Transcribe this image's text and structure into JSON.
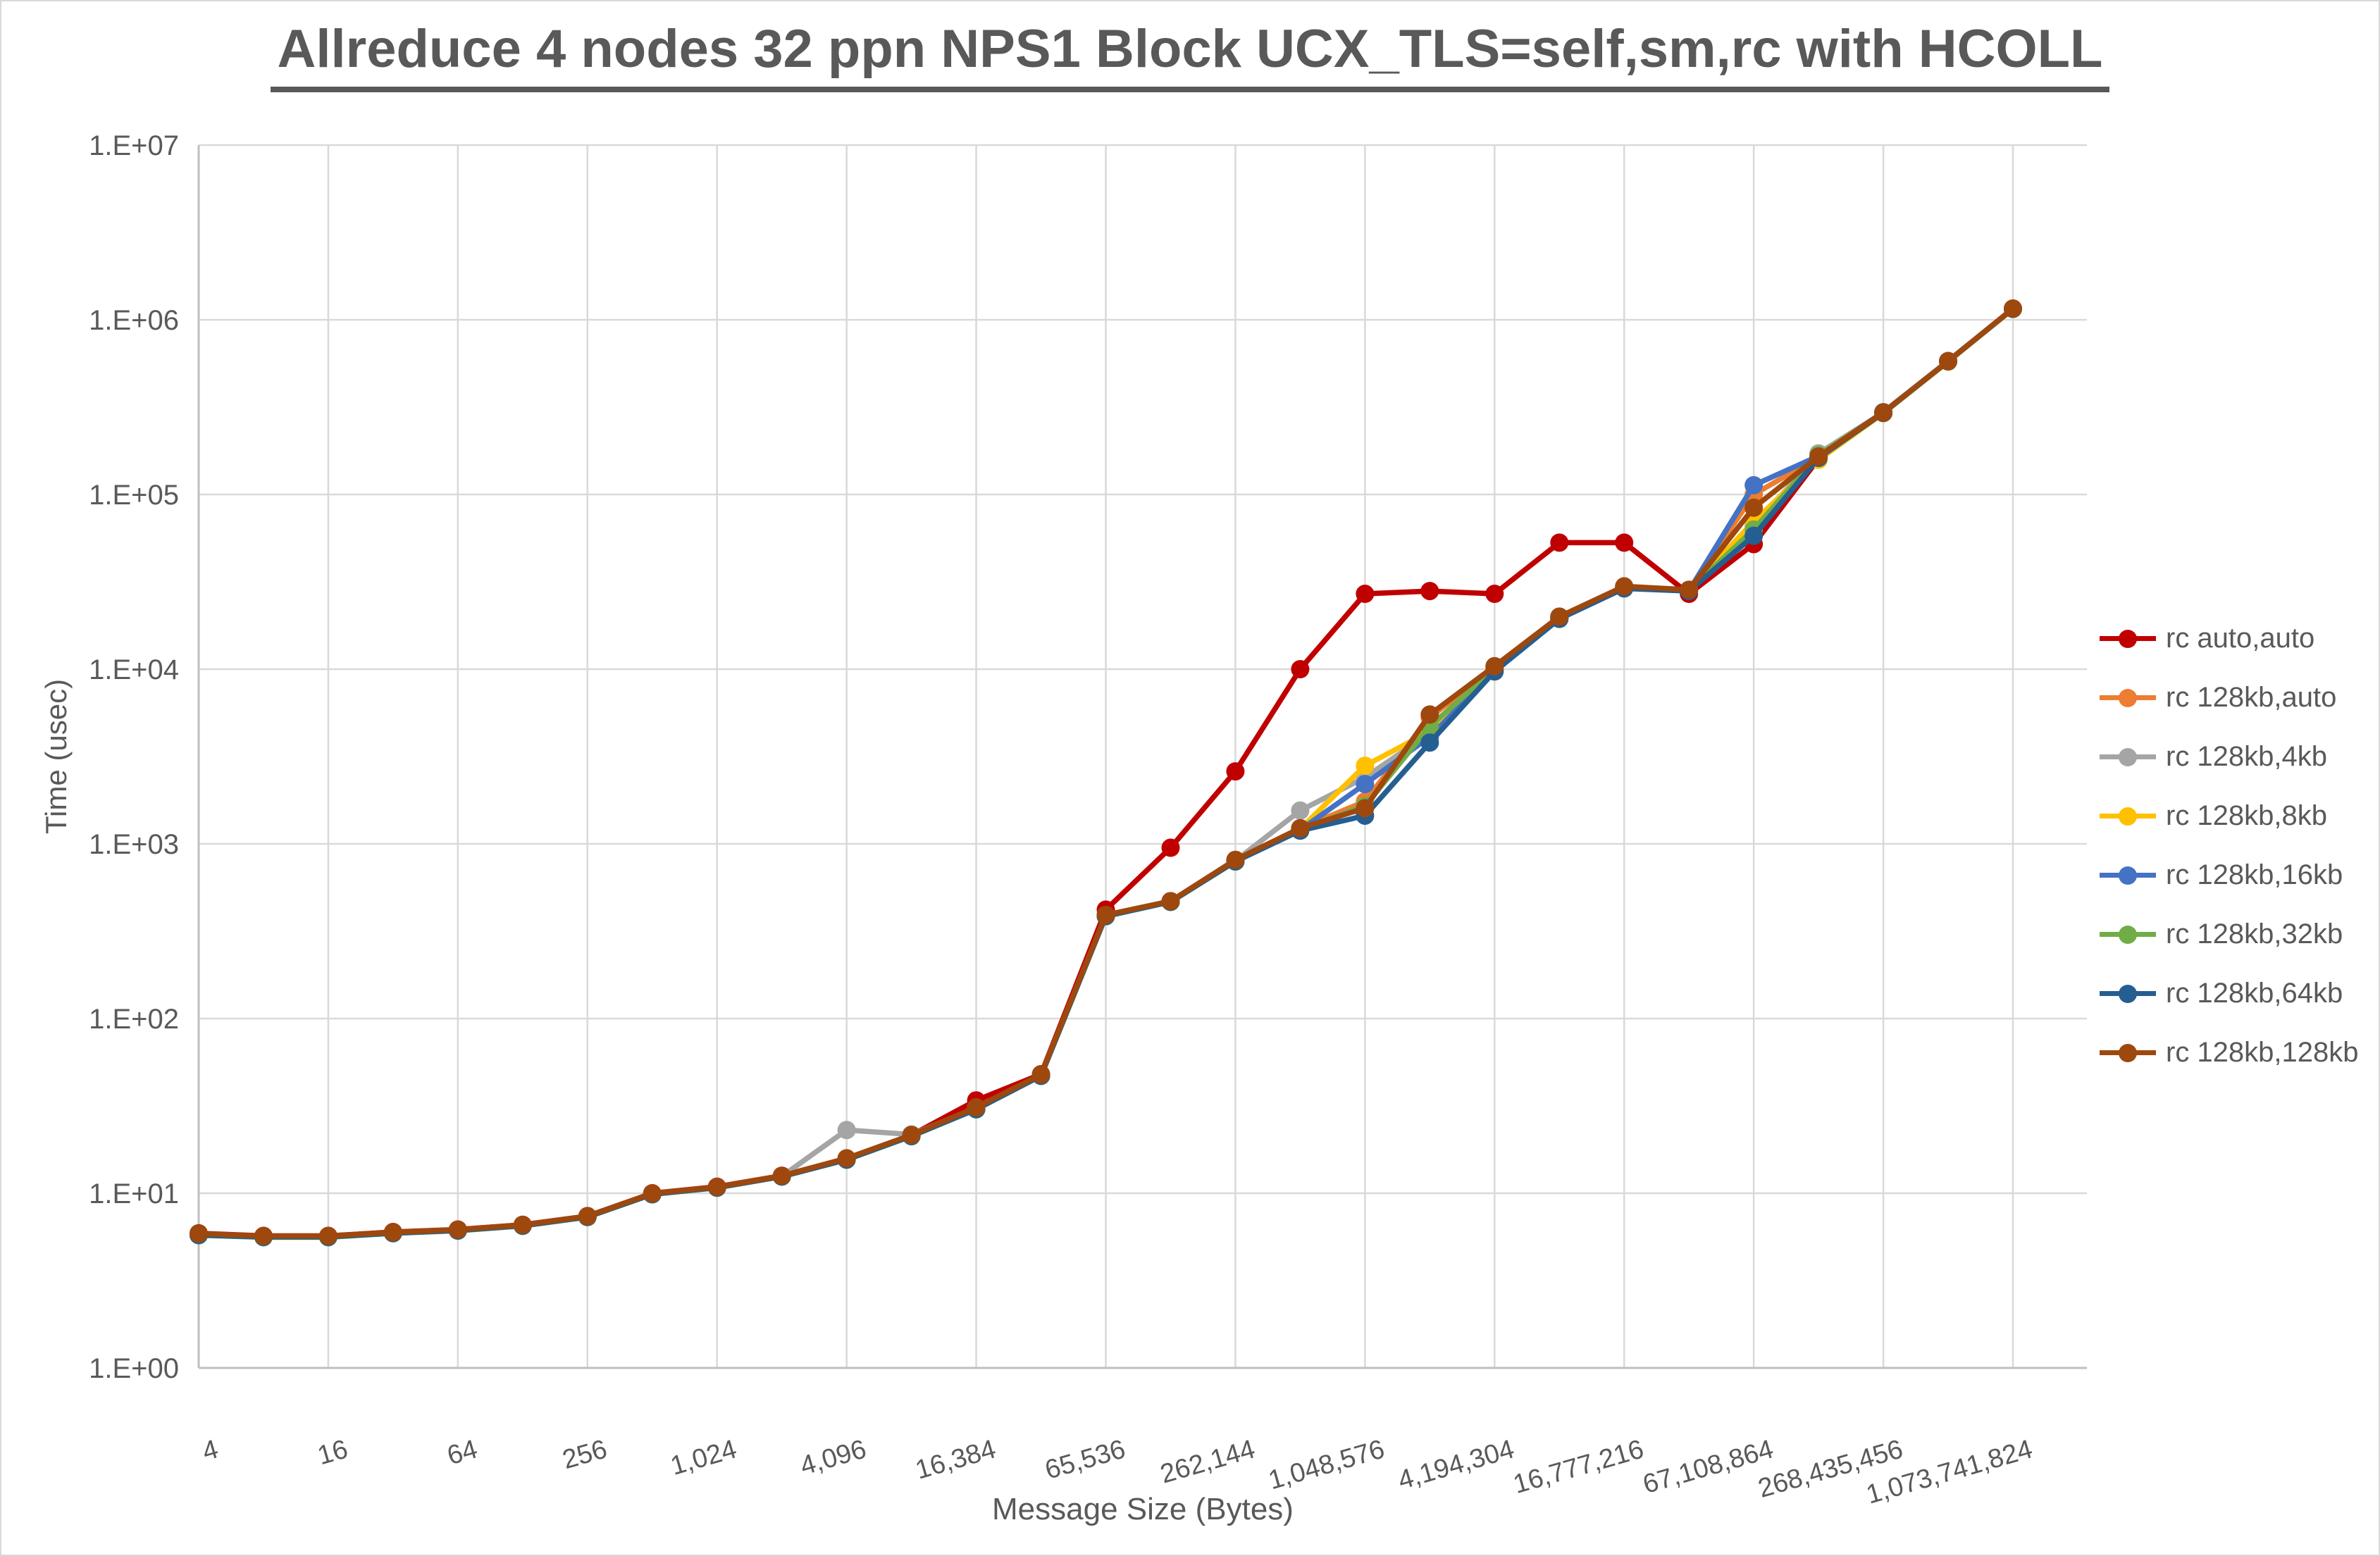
{
  "chart_data": {
    "type": "line",
    "title": "Allreduce 4 nodes 32 ppn NPS1 Block UCX_TLS=self,sm,rc with HCOLL",
    "xlabel": "Message Size (Bytes)",
    "ylabel": "Time (usec)",
    "x_scale": "log2",
    "y_scale": "log10",
    "ylim": [
      1,
      10000000
    ],
    "grid": true,
    "legend_position": "right",
    "colors": {
      "grid": "#D9D9D9",
      "axis": "#BFBFBF",
      "text": "#595959"
    },
    "y_tick_labels": [
      "1.E+00",
      "1.E+01",
      "1.E+02",
      "1.E+03",
      "1.E+04",
      "1.E+05",
      "1.E+06",
      "1.E+07"
    ],
    "x_tick_values": [
      4,
      16,
      64,
      256,
      1024,
      4096,
      16384,
      65536,
      262144,
      1048576,
      4194304,
      16777216,
      67108864,
      268435456,
      1073741824
    ],
    "x_tick_labels": [
      "4",
      "16",
      "64",
      "256",
      "1,024",
      "4,096",
      "16,384",
      "65,536",
      "262,144",
      "1,048,576",
      "4,194,304",
      "16,777,216",
      "67,108,864",
      "268,435,456",
      "1,073,741,824"
    ],
    "x": [
      4,
      8,
      16,
      32,
      64,
      128,
      256,
      512,
      1024,
      2048,
      4096,
      8192,
      16384,
      32768,
      65536,
      131072,
      262144,
      524288,
      1048576,
      2097152,
      4194304,
      8388608,
      16777216,
      33554432,
      67108864,
      134217728,
      268435456,
      536870912,
      1073741824
    ],
    "series": [
      {
        "name": "rc auto,auto",
        "color": "#C00000",
        "values": [
          5.9,
          5.7,
          5.7,
          6.0,
          6.2,
          6.6,
          7.4,
          10.0,
          10.9,
          12.6,
          15.8,
          21.5,
          34,
          48,
          420,
          950,
          2600,
          10000,
          27000,
          28000,
          27000,
          53000,
          53000,
          27000,
          52000,
          160000,
          293000,
          578000,
          1157000
        ]
      },
      {
        "name": "rc 128kb,auto",
        "color": "#ED7D31",
        "values": [
          5.85,
          5.68,
          5.68,
          5.97,
          6.18,
          6.58,
          7.38,
          9.95,
          10.85,
          12.55,
          15.75,
          21.45,
          31,
          47.6,
          391,
          469,
          806,
          1225,
          1750,
          5300,
          10200,
          19900,
          29600,
          28400,
          100000,
          164000,
          294000,
          579000,
          1158000
        ]
      },
      {
        "name": "rc 128kb,4kb",
        "color": "#A5A5A5",
        "values": [
          5.8,
          5.65,
          5.65,
          5.94,
          6.15,
          6.55,
          7.35,
          9.9,
          10.8,
          12.5,
          23,
          21.7,
          30.8,
          47.4,
          389,
          468,
          800,
          1550,
          2400,
          4300,
          10000,
          19700,
          29400,
          28300,
          66000,
          172000,
          294500,
          579000,
          1157000
        ]
      },
      {
        "name": "rc 128kb,8kb",
        "color": "#FFC000",
        "values": [
          5.82,
          5.66,
          5.66,
          5.95,
          6.16,
          6.56,
          7.36,
          9.92,
          10.82,
          12.52,
          15.7,
          21.4,
          30.6,
          47.3,
          388,
          467,
          798,
          1218,
          2800,
          4400,
          9900,
          19600,
          29300,
          28200,
          70000,
          158000,
          292000,
          576000,
          1153000
        ]
      },
      {
        "name": "rc 128kb,16kb",
        "color": "#4472C4",
        "values": [
          5.78,
          5.63,
          5.63,
          5.92,
          6.13,
          6.53,
          7.33,
          9.88,
          10.78,
          12.48,
          15.6,
          21.3,
          30.4,
          47.1,
          386,
          466,
          795,
          1200,
          2200,
          4100,
          9800,
          19500,
          29200,
          28100,
          113000,
          166000,
          296000,
          581000,
          1159000
        ]
      },
      {
        "name": "rc 128kb,32kb",
        "color": "#70AD47",
        "values": [
          5.75,
          5.6,
          5.6,
          5.9,
          6.1,
          6.5,
          7.3,
          9.85,
          10.75,
          12.45,
          15.55,
          21.2,
          30.2,
          47.0,
          385,
          465,
          792,
          1212,
          1650,
          4700,
          10000,
          19800,
          29100,
          28200,
          63000,
          168000,
          294000,
          579000,
          1156000
        ]
      },
      {
        "name": "rc 128kb,64kb",
        "color": "#255E91",
        "values": [
          5.76,
          5.62,
          5.62,
          5.91,
          6.12,
          6.52,
          7.32,
          9.87,
          10.77,
          12.47,
          15.58,
          21.25,
          30.3,
          47.0,
          386,
          466,
          794,
          1190,
          1450,
          3800,
          9700,
          19400,
          29000,
          28000,
          58000,
          162000,
          293000,
          578000,
          1155000
        ]
      },
      {
        "name": "rc 128kb,128kb",
        "color": "#9E480E",
        "values": [
          5.88,
          5.69,
          5.69,
          5.98,
          6.19,
          6.59,
          7.39,
          9.97,
          10.87,
          12.57,
          15.85,
          21.55,
          31,
          47.8,
          392,
          470,
          810,
          1230,
          1600,
          5500,
          10400,
          20000,
          29800,
          28500,
          84000,
          165000,
          295000,
          580000,
          1160000
        ]
      }
    ]
  }
}
